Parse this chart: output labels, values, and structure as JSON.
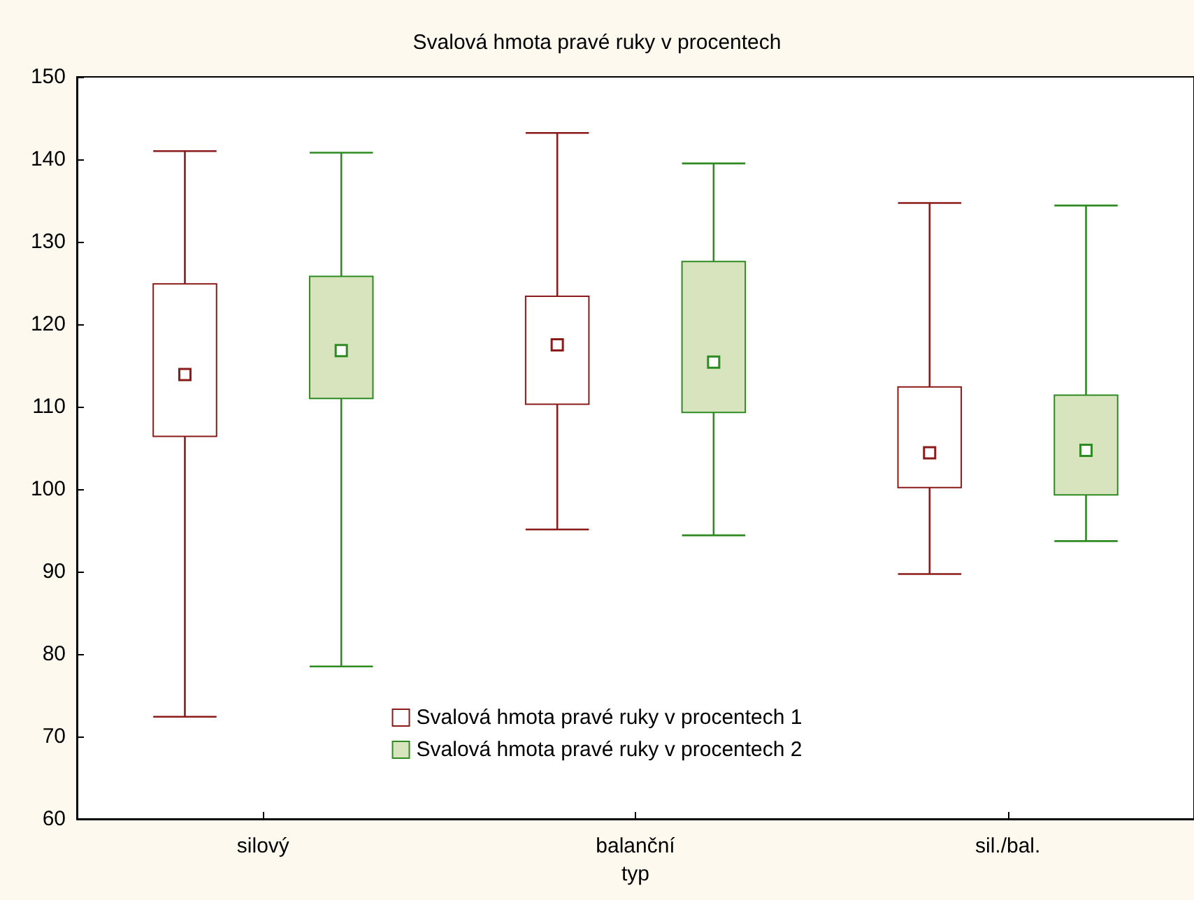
{
  "chart_data": {
    "type": "box",
    "title": "Svalová hmota pravé ruky v procentech",
    "xlabel": "typ",
    "categories": [
      "silový",
      "balanční",
      "sil./bal."
    ],
    "ylim": [
      60,
      150
    ],
    "yticks": [
      60,
      70,
      80,
      90,
      100,
      110,
      120,
      130,
      140,
      150
    ],
    "grid": false,
    "legend": "bottom",
    "marker": "square",
    "series": [
      {
        "name": "Svalová hmota pravé ruky v procentech 1",
        "color": "#8b1a1a",
        "boxes": [
          {
            "low": 72.4,
            "q1": 106.4,
            "median": 113.9,
            "q3": 124.9,
            "high": 141.0
          },
          {
            "low": 95.1,
            "q1": 110.3,
            "median": 117.5,
            "q3": 123.4,
            "high": 143.2
          },
          {
            "low": 89.7,
            "q1": 100.2,
            "median": 104.4,
            "q3": 112.4,
            "high": 134.7
          }
        ]
      },
      {
        "name": "Svalová hmota pravé ruky v procentech 2",
        "color": "#2e8b22",
        "boxes": [
          {
            "low": 78.5,
            "q1": 111.0,
            "median": 116.8,
            "q3": 125.8,
            "high": 140.8
          },
          {
            "low": 94.4,
            "q1": 109.3,
            "median": 115.4,
            "q3": 127.6,
            "high": 139.5
          },
          {
            "low": 93.7,
            "q1": 99.3,
            "median": 104.7,
            "q3": 111.4,
            "high": 134.4
          }
        ]
      }
    ]
  }
}
